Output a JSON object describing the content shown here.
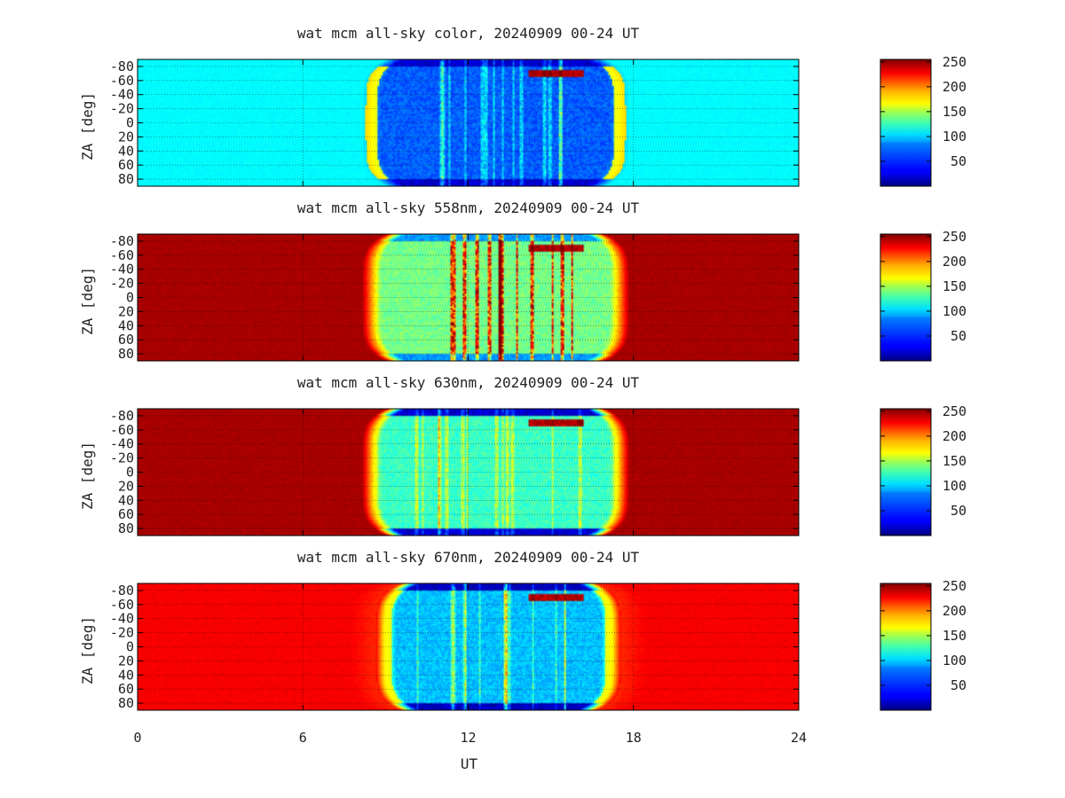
{
  "chart_data": [
    {
      "type": "heatmap",
      "title": "wat mcm all-sky color, 20240909 00-24 UT",
      "variant": "color",
      "ylabel": "ZA [deg]",
      "xlim": [
        0,
        24
      ],
      "ylim": [
        -90,
        90
      ],
      "y_ticks": [
        "-80",
        "-60",
        "-40",
        "-20",
        "0",
        "20",
        "40",
        "60",
        "80"
      ],
      "colorbar": {
        "min": 0,
        "max": 255,
        "ticks": [
          "50",
          "100",
          "150",
          "200",
          "250"
        ]
      },
      "dark_level": 95,
      "night_window": {
        "start": 8.5,
        "end": 17.5
      },
      "night_level": 55,
      "edge_dark_level": 20
    },
    {
      "type": "heatmap",
      "title": "wat mcm all-sky 558nm, 20240909 00-24 UT",
      "variant": "558",
      "ylabel": "ZA [deg]",
      "xlim": [
        0,
        24
      ],
      "ylim": [
        -90,
        90
      ],
      "y_ticks": [
        "-80",
        "-60",
        "-40",
        "-20",
        "0",
        "20",
        "40",
        "60",
        "80"
      ],
      "colorbar": {
        "min": 0,
        "max": 255,
        "ticks": [
          "50",
          "100",
          "150",
          "200",
          "250"
        ]
      },
      "dark_level": 245,
      "night_window": {
        "start": 8.5,
        "end": 17.5
      },
      "night_level": 125,
      "edge_dark_level": 70
    },
    {
      "type": "heatmap",
      "title": "wat mcm all-sky 630nm, 20240909 00-24 UT",
      "variant": "630",
      "ylabel": "ZA [deg]",
      "xlim": [
        0,
        24
      ],
      "ylim": [
        -90,
        90
      ],
      "y_ticks": [
        "-80",
        "-60",
        "-40",
        "-20",
        "0",
        "20",
        "40",
        "60",
        "80"
      ],
      "colorbar": {
        "min": 0,
        "max": 255,
        "ticks": [
          "50",
          "100",
          "150",
          "200",
          "250"
        ]
      },
      "dark_level": 245,
      "night_window": {
        "start": 8.5,
        "end": 17.5
      },
      "night_level": 110,
      "edge_dark_level": 20
    },
    {
      "type": "heatmap",
      "title": "wat mcm all-sky 670nm, 20240909 00-24 UT",
      "variant": "670",
      "ylabel": "ZA [deg]",
      "xlabel": "UT",
      "xlim": [
        0,
        24
      ],
      "ylim": [
        -90,
        90
      ],
      "x_ticks": [
        "0",
        "6",
        "12",
        "18",
        "24"
      ],
      "y_ticks": [
        "-80",
        "-60",
        "-40",
        "-20",
        "0",
        "20",
        "40",
        "60",
        "80"
      ],
      "colorbar": {
        "min": 0,
        "max": 255,
        "ticks": [
          "50",
          "100",
          "150",
          "200",
          "250"
        ]
      },
      "dark_level": 225,
      "night_window": {
        "start": 9,
        "end": 17.2
      },
      "night_level": 80,
      "edge_dark_level": 15
    }
  ]
}
